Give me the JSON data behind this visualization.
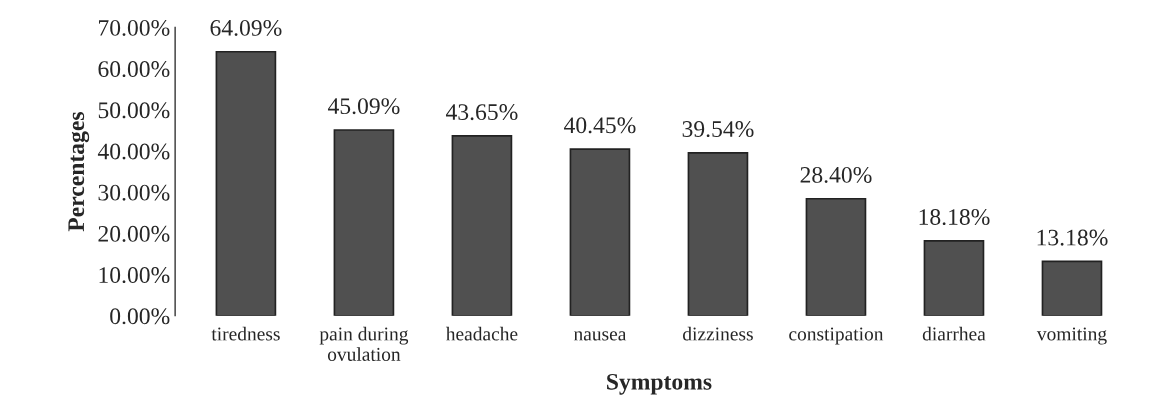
{
  "chart_data": {
    "type": "bar",
    "xlabel": "Symptoms",
    "ylabel": "Percentages",
    "categories": [
      "tiredness",
      "pain during\novulation",
      "headache",
      "nausea",
      "dizziness",
      "constipation",
      "diarrhea",
      "vomiting"
    ],
    "values": [
      64.09,
      45.09,
      43.65,
      40.45,
      39.54,
      28.4,
      18.18,
      13.18
    ],
    "value_labels": [
      "64.09%",
      "45.09%",
      "43.65%",
      "40.45%",
      "39.54%",
      "28.40%",
      "18.18%",
      "13.18%"
    ],
    "color": "#505050",
    "ylim": [
      0,
      70
    ],
    "yticks": [
      {
        "value": 0,
        "label": "0.00%"
      },
      {
        "value": 10,
        "label": "10.00%"
      },
      {
        "value": 20,
        "label": "20.00%"
      },
      {
        "value": 30,
        "label": "30.00%"
      },
      {
        "value": 40,
        "label": "40.00%"
      },
      {
        "value": 50,
        "label": "50.00%"
      },
      {
        "value": 60,
        "label": "60.00%"
      },
      {
        "value": 70,
        "label": "70.00%"
      }
    ],
    "grid": false
  }
}
